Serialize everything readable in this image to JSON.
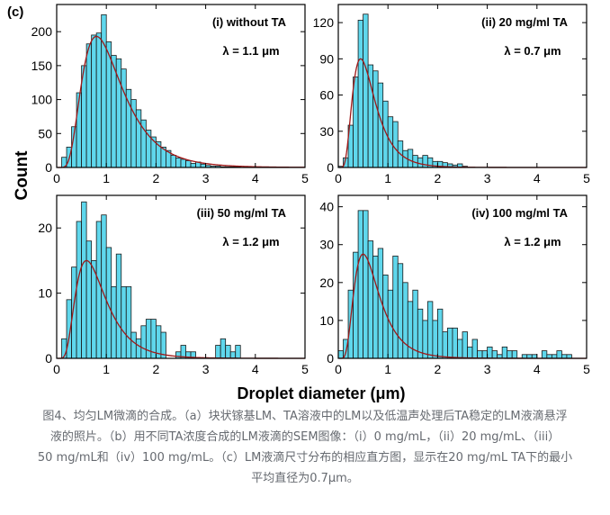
{
  "figure": {
    "panel_letter": "(c)",
    "y_axis_label": "Count",
    "x_axis_label": "Droplet diameter (μm)"
  },
  "colors": {
    "bar_fill": "#5fd7ec",
    "bar_stroke": "#1a1a1a",
    "fit_line": "#a01818",
    "axis": "#000000",
    "caption": "#666a70"
  },
  "chart_data": [
    {
      "type": "bar",
      "panel": "(i) without TA",
      "annotation": "λ = 1.1 μm",
      "xlim": [
        0,
        5
      ],
      "ylim": [
        0,
        240
      ],
      "xticks": [
        0,
        1,
        2,
        3,
        4,
        5
      ],
      "yticks": [
        0,
        50,
        100,
        150,
        200
      ],
      "bin_width": 0.1,
      "bin_start": 0.0,
      "values": [
        0,
        15,
        30,
        60,
        110,
        150,
        182,
        195,
        198,
        225,
        185,
        165,
        160,
        145,
        115,
        100,
        85,
        70,
        55,
        45,
        38,
        30,
        25,
        18,
        14,
        12,
        10,
        6,
        8,
        5,
        3,
        2,
        2,
        1,
        1,
        1,
        1,
        0,
        0,
        0,
        0,
        0,
        0,
        0,
        0,
        0,
        0,
        0,
        0,
        0
      ],
      "fit": {
        "type": "lognormal",
        "peak_x": 0.8,
        "peak_y": 193
      }
    },
    {
      "type": "bar",
      "panel": "(ii) 20 mg/ml TA",
      "annotation": "λ = 0.7 μm",
      "xlim": [
        0,
        5
      ],
      "ylim": [
        0,
        135
      ],
      "xticks": [
        0,
        1,
        2,
        3,
        4,
        5
      ],
      "yticks": [
        0,
        30,
        60,
        90,
        120
      ],
      "bin_width": 0.1,
      "bin_start": 0.0,
      "values": [
        1,
        8,
        35,
        75,
        122,
        127,
        85,
        80,
        70,
        55,
        42,
        38,
        22,
        14,
        15,
        10,
        8,
        10,
        8,
        5,
        5,
        4,
        3,
        2,
        3,
        1,
        0,
        0,
        0,
        0,
        0,
        0,
        0,
        0,
        0,
        0,
        0,
        0,
        0,
        0,
        0,
        0,
        0,
        0,
        0,
        0,
        0,
        0,
        0,
        0
      ],
      "fit": {
        "type": "lognormal",
        "peak_x": 0.45,
        "peak_y": 90
      }
    },
    {
      "type": "bar",
      "panel": "(iii) 50 mg/ml TA",
      "annotation": "λ = 1.2 μm",
      "xlim": [
        0,
        5
      ],
      "ylim": [
        0,
        25
      ],
      "xticks": [
        0,
        1,
        2,
        3,
        4,
        5
      ],
      "yticks": [
        0,
        10,
        20
      ],
      "bin_width": 0.1,
      "bin_start": 0.0,
      "values": [
        0,
        3,
        9,
        14,
        21,
        24,
        18,
        15,
        21,
        22,
        17,
        11,
        16,
        11,
        11,
        4,
        3,
        5,
        6,
        6,
        5,
        4,
        0,
        0,
        1,
        2,
        1,
        1,
        0,
        0,
        0,
        0,
        2,
        3,
        2,
        1,
        2,
        0,
        0,
        0,
        0,
        0,
        0,
        0,
        0,
        0,
        0,
        0,
        0,
        0
      ],
      "fit": {
        "type": "lognormal",
        "peak_x": 0.6,
        "peak_y": 15
      }
    },
    {
      "type": "bar",
      "panel": "(iv) 100 mg/ml TA",
      "annotation": "λ = 1.2 μm",
      "xlim": [
        0,
        5
      ],
      "ylim": [
        0,
        43
      ],
      "xticks": [
        0,
        1,
        2,
        3,
        4,
        5
      ],
      "yticks": [
        0,
        10,
        20,
        30,
        40
      ],
      "bin_width": 0.1,
      "bin_start": 0.0,
      "values": [
        2,
        5,
        18,
        28,
        39,
        39,
        31,
        27,
        29,
        22,
        18,
        27,
        25,
        20,
        15,
        18,
        13,
        10,
        15,
        10,
        13,
        7,
        8,
        8,
        5,
        7,
        3,
        5,
        2,
        2,
        3,
        2,
        1,
        3,
        2,
        2,
        0,
        1,
        1,
        1,
        0,
        2,
        1,
        1,
        2,
        1,
        1,
        0,
        0,
        0
      ],
      "fit": {
        "type": "lognormal",
        "peak_x": 0.5,
        "peak_y": 27.5
      }
    }
  ],
  "caption": {
    "line1": "图4、均匀LM微滴的合成。（a）块状镓基LM、TA溶液中的LM以及低温声处理后TA稳定的LM液滴悬浮",
    "line2": "液的照片。（b）用不同TA浓度合成的LM液滴的SEM图像：（i）0 mg/mL，（ii）20 mg/mL、（iii）",
    "line3": "50 mg/mL和（iv）100 mg/mL。（c）LM液滴尺寸分布的相应直方图，显示在20 mg/mL TA下的最小",
    "line4": "平均直径为0.7μm。"
  }
}
